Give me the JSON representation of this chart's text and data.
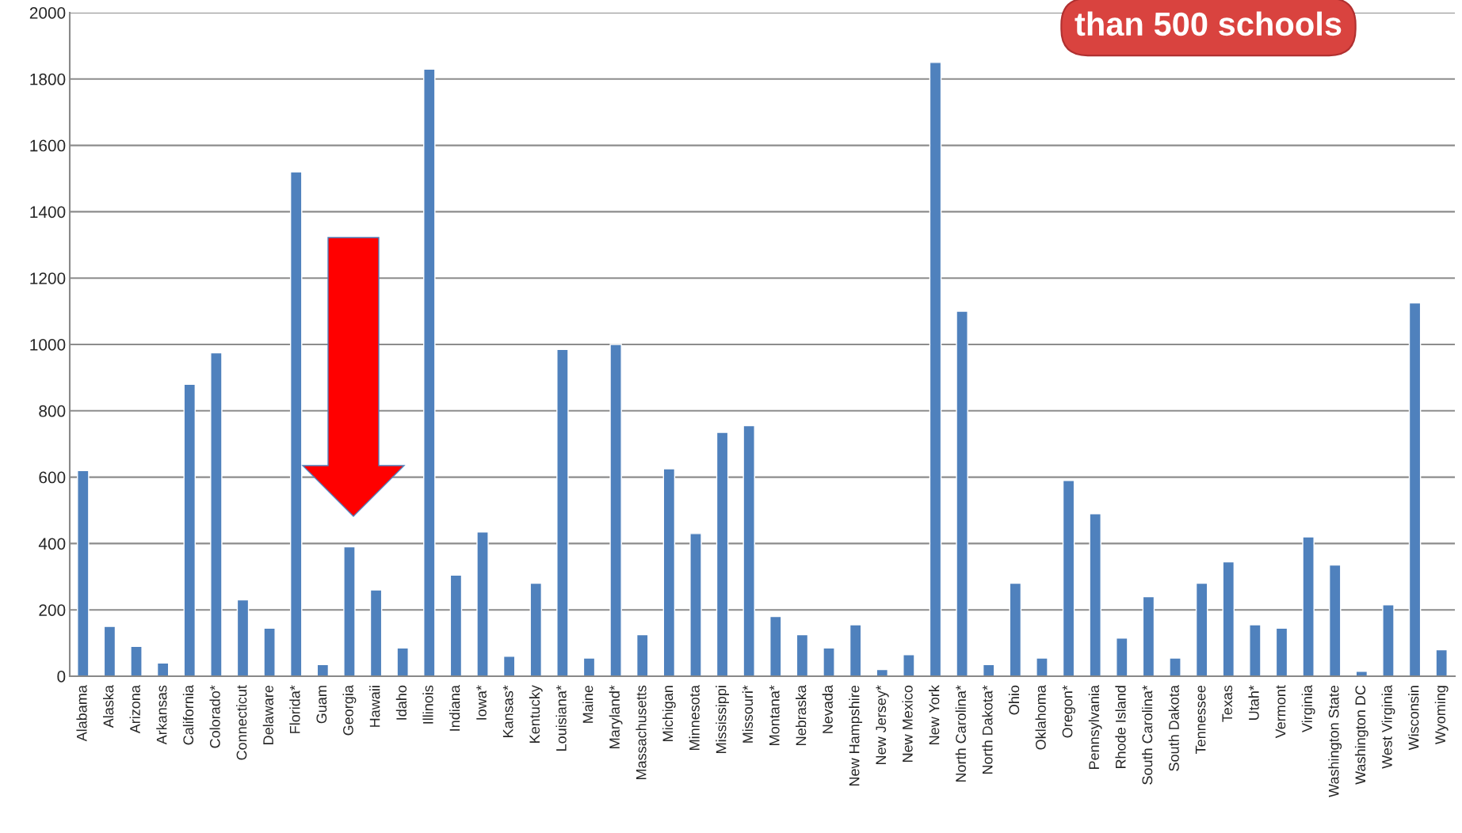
{
  "chart_data": {
    "type": "bar",
    "categories": [
      "Alabama",
      "Alaska",
      "Arizona",
      "Arkansas",
      "California",
      "Colorado*",
      "Connecticut",
      "Delaware",
      "Florida*",
      "Guam",
      "Georgia",
      "Hawaii",
      "Idaho",
      "Illinois",
      "Indiana",
      "Iowa*",
      "Kansas*",
      "Kentucky",
      "Louisiana*",
      "Maine",
      "Maryland*",
      "Massachusetts",
      "Michigan",
      "Minnesota",
      "Mississippi",
      "Missouri*",
      "Montana*",
      "Nebraska",
      "Nevada",
      "New Hampshire",
      "New Jersey*",
      "New Mexico",
      "New York",
      "North Carolina*",
      "North Dakota*",
      "Ohio",
      "Oklahoma",
      "Oregon*",
      "Pennsylvania",
      "Rhode Island",
      "South Carolina*",
      "South Dakota",
      "Tennessee",
      "Texas",
      "Utah*",
      "Vermont",
      "Virginia",
      "Washington State",
      "Washington DC",
      "West Virginia",
      "Wisconsin",
      "Wyoming"
    ],
    "values": [
      620,
      150,
      90,
      40,
      880,
      975,
      230,
      145,
      1520,
      35,
      390,
      260,
      85,
      1830,
      305,
      435,
      60,
      280,
      985,
      55,
      1000,
      125,
      625,
      430,
      735,
      755,
      180,
      125,
      85,
      155,
      20,
      65,
      1850,
      1100,
      35,
      280,
      55,
      590,
      490,
      115,
      240,
      55,
      280,
      345,
      155,
      145,
      420,
      335,
      15,
      215,
      1125,
      80
    ],
    "color": "#4f81bd",
    "ylim": [
      0,
      2000
    ],
    "yticks": [
      0,
      200,
      400,
      600,
      800,
      1000,
      1200,
      1400,
      1600,
      1800,
      2000
    ],
    "grid": "y",
    "annotations": [
      "than 500 schools"
    ]
  }
}
